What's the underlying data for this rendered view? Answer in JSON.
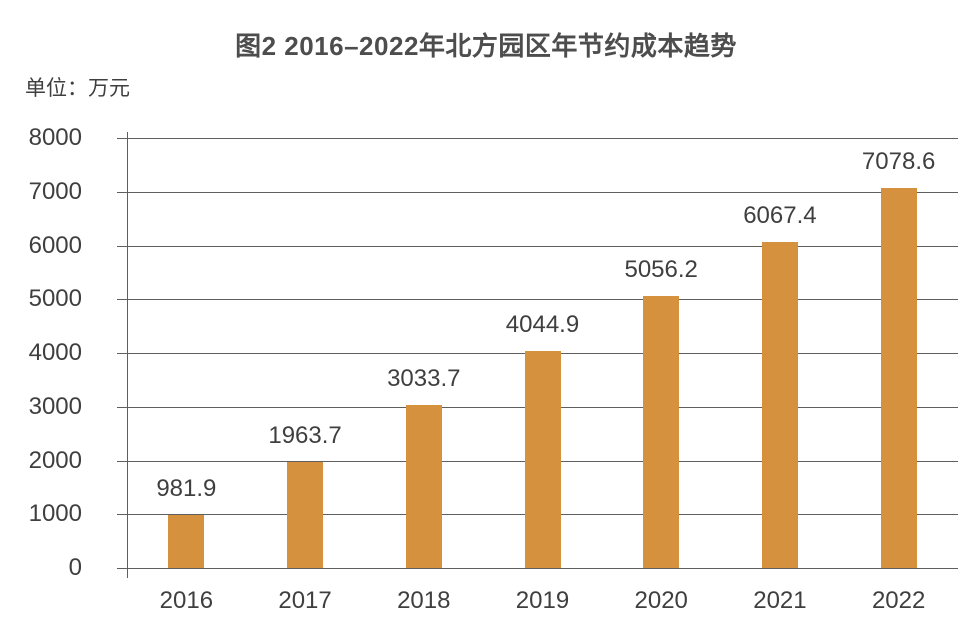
{
  "title": "图2 2016–2022年北方园区年节约成本趋势",
  "unit_label": "单位：万元",
  "colors": {
    "bar": "#D6913F",
    "line": "#5F5F5F",
    "text": "#3F3F3F",
    "title_text": "#4D4D4D"
  },
  "chart_data": {
    "type": "bar",
    "title": "图2 2016–2022年北方园区年节约成本趋势",
    "xlabel": "",
    "ylabel": "单位：万元",
    "categories": [
      "2016",
      "2017",
      "2018",
      "2019",
      "2020",
      "2021",
      "2022"
    ],
    "values": [
      981.9,
      1963.7,
      3033.7,
      4044.9,
      5056.2,
      6067.4,
      7078.6
    ],
    "value_labels": [
      "981.9",
      "1963.7",
      "3033.7",
      "4044.9",
      "5056.2",
      "6067.4",
      "7078.6"
    ],
    "ylim": [
      0,
      8000
    ],
    "y_ticks": [
      0,
      1000,
      2000,
      3000,
      4000,
      5000,
      6000,
      7000,
      8000
    ],
    "grid": true,
    "legend": false
  }
}
